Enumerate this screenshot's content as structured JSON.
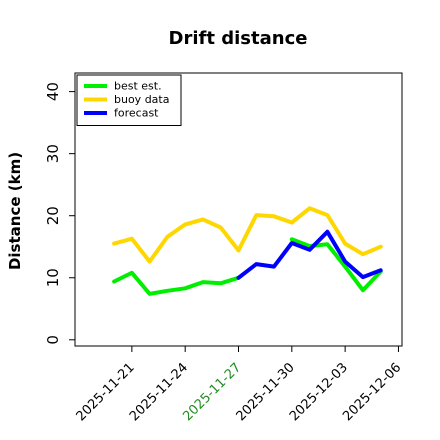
{
  "chart_data": {
    "type": "line",
    "title": "Drift distance",
    "xlabel": "",
    "ylabel": "Distance (km)",
    "ylim": [
      -1,
      43
    ],
    "yticks": [
      0,
      10,
      20,
      30,
      40
    ],
    "xticks": [
      {
        "label": "2025-11-21",
        "day": 0,
        "color": "#000000"
      },
      {
        "label": "2025-11-24",
        "day": 3,
        "color": "#000000"
      },
      {
        "label": "2025-11-27",
        "day": 6,
        "color": "#228b22"
      },
      {
        "label": "2025-11-30",
        "day": 9,
        "color": "#000000"
      },
      {
        "label": "2025-12-03",
        "day": 12,
        "color": "#000000"
      },
      {
        "label": "2025-12-06",
        "day": 15,
        "color": "#000000"
      }
    ],
    "xlim": [
      -3.2,
      15.2
    ],
    "legend_position": "top-left",
    "grid": false,
    "series": [
      {
        "name": "best est.",
        "color": "#00ee00",
        "x": [
          -1,
          0,
          1,
          2,
          3,
          4,
          5,
          6
        ],
        "y": [
          9.4,
          10.8,
          7.4,
          7.9,
          8.3,
          9.3,
          9.1,
          10.0
        ]
      },
      {
        "name": "buoy data",
        "color": "#ffd700",
        "x": [
          -1,
          0,
          1,
          2,
          3,
          4,
          5,
          6,
          7,
          8,
          9,
          10,
          11,
          12,
          13,
          14
        ],
        "y": [
          15.5,
          16.3,
          12.6,
          16.6,
          18.6,
          19.4,
          18.1,
          14.4,
          20.1,
          19.9,
          18.9,
          21.2,
          20.1,
          15.5,
          13.8,
          15.0
        ]
      },
      {
        "name": "",
        "color": "#00ee00",
        "x": [
          9,
          10,
          11,
          12,
          13,
          14
        ],
        "y": [
          16.2,
          15.1,
          15.4,
          11.8,
          8.0,
          11.0
        ]
      },
      {
        "name": "forecast",
        "color": "#0000ff",
        "x": [
          6,
          7,
          8,
          9,
          10,
          11,
          12,
          13,
          14
        ],
        "y": [
          10.0,
          12.2,
          11.8,
          15.6,
          14.5,
          17.4,
          12.6,
          10.1,
          11.2
        ]
      }
    ]
  }
}
